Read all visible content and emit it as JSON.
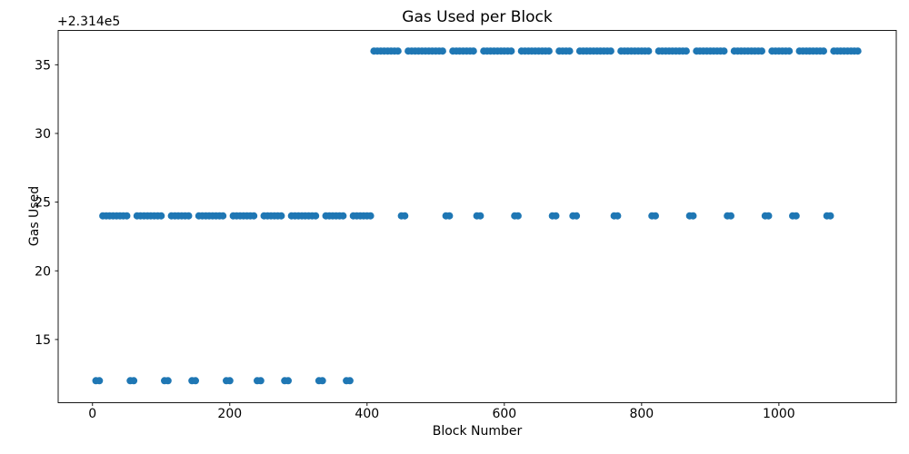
{
  "chart_data": {
    "type": "scatter",
    "title": "Gas Used per Block",
    "xlabel": "Block Number",
    "ylabel": "Gas Used",
    "grid": false,
    "legend": "none",
    "x_axis": {
      "ticks": [
        0,
        200,
        400,
        600,
        800,
        1000
      ],
      "lim": [
        -50,
        1171
      ]
    },
    "y_axis": {
      "offset_label": "+2.314e5",
      "offset_value": 231400,
      "ticks": [
        15,
        20,
        25,
        30,
        35
      ],
      "lim": [
        231410.4,
        231437.5
      ]
    },
    "marker": {
      "color": "#1f77b4",
      "radius_px": 4
    },
    "points": {
      "encoding": "x = block numbers from block_min to block_max in steps of block_step; y (gas used) = gas_low if block is in low_gas_blocks, gas_mid if block < transition_block or block is in mid_gas_blocks, otherwise gas_high",
      "block_min": 5,
      "block_max": 1115,
      "block_step": 5,
      "gas_low": 231412,
      "gas_mid": 231424,
      "gas_high": 231436,
      "transition_block": 410,
      "low_gas_blocks": [
        5,
        10,
        55,
        60,
        105,
        110,
        145,
        150,
        195,
        200,
        240,
        245,
        280,
        285,
        330,
        335,
        370,
        375
      ],
      "mid_gas_blocks": [
        450,
        455,
        515,
        520,
        560,
        565,
        615,
        620,
        670,
        675,
        700,
        705,
        760,
        765,
        815,
        820,
        870,
        875,
        925,
        930,
        980,
        985,
        1020,
        1025,
        1070,
        1075
      ]
    }
  }
}
